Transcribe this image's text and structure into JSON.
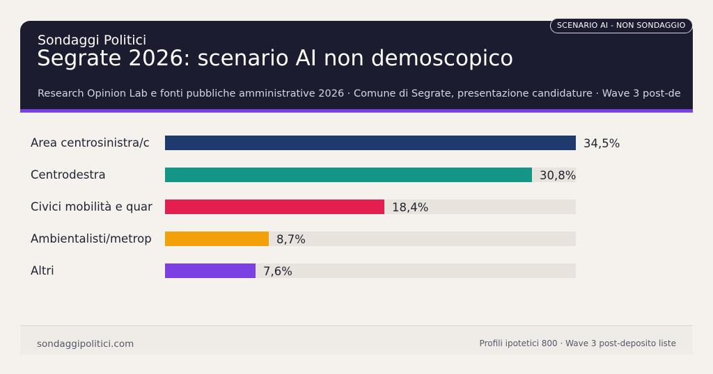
{
  "header": {
    "brand": "Sondaggi Politici",
    "title": "Segrate 2026: scenario AI non demoscopico",
    "source": "Research Opinion Lab e fonti pubbliche amministrative 2026 · Comune di Segrate, presentazione candidature · Wave 3 post-de",
    "badge": "SCENARIO AI - NON SONDAGGIO"
  },
  "colors": {
    "header_bg": "#1b1c30",
    "accent": "#7b3fe4",
    "track": "#e8e3dd"
  },
  "chart_data": {
    "type": "bar",
    "orientation": "horizontal",
    "categories": [
      "Area centrosinistra/c",
      "Centrodestra",
      "Civici mobilità e quar",
      "Ambientalisti/metrop",
      "Altri"
    ],
    "values": [
      34.5,
      30.8,
      18.4,
      8.7,
      7.6
    ],
    "value_labels": [
      "34,5%",
      "30,8%",
      "18,4%",
      "8,7%",
      "7,6%"
    ],
    "colors": [
      "#1f3a6e",
      "#139688",
      "#e21f4e",
      "#f3a00b",
      "#7b3fe4"
    ],
    "xlim": [
      0,
      34.5
    ],
    "grid": false
  },
  "footer": {
    "site": "sondaggipolitici.com",
    "note": "Profili ipotetici 800 · Wave 3 post-deposito liste"
  }
}
